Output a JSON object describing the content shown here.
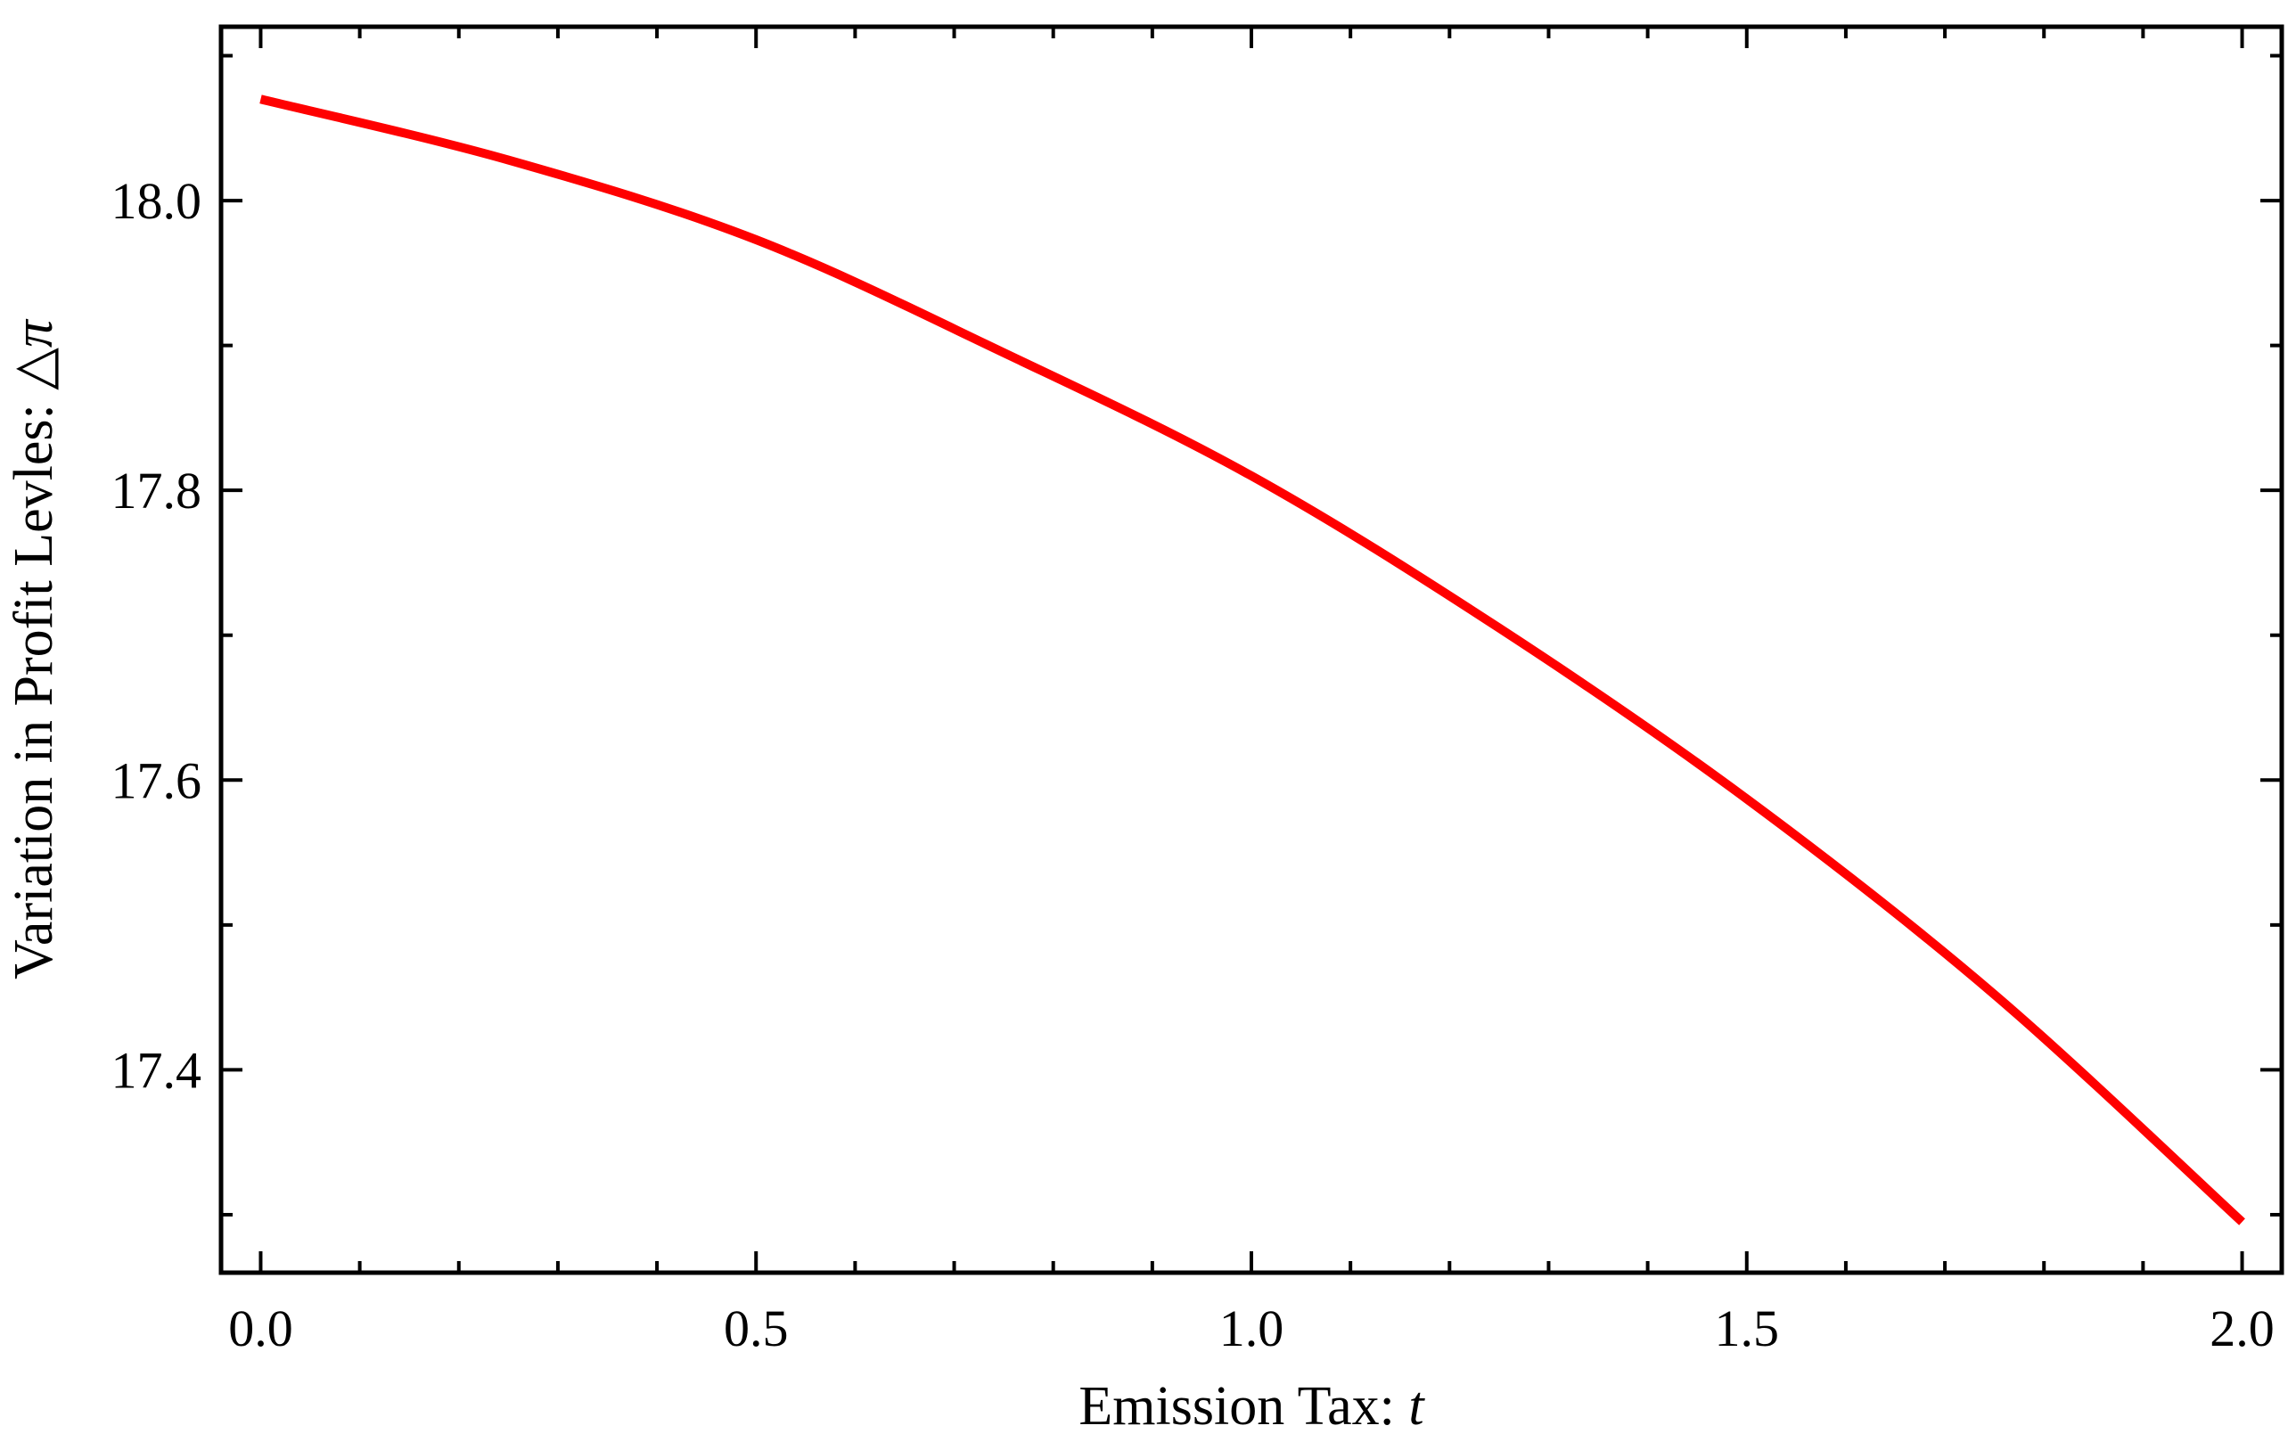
{
  "chart_data": {
    "type": "line",
    "title": "",
    "xlabel_prefix": "Emission Tax: ",
    "xlabel_symbol": "t",
    "ylabel_prefix": "Variation in Profit Levles: ",
    "ylabel_symbol": "△π",
    "xlim": [
      -0.04,
      2.04
    ],
    "ylim": [
      17.26,
      18.12
    ],
    "x_major_ticks": [
      0.0,
      0.5,
      1.0,
      1.5,
      2.0
    ],
    "x_tick_labels": [
      "0.0",
      "0.5",
      "1.0",
      "1.5",
      "2.0"
    ],
    "x_minor_step": 0.1,
    "y_major_ticks": [
      17.4,
      17.6,
      17.8,
      18.0
    ],
    "y_tick_labels": [
      "17.4",
      "17.6",
      "17.8",
      "18.0"
    ],
    "y_minor_step": 0.1,
    "grid": false,
    "series": [
      {
        "color": "#ff0000",
        "x": [
          0.0,
          0.25,
          0.5,
          0.75,
          1.0,
          1.25,
          1.5,
          1.75,
          2.0
        ],
        "y": [
          18.07,
          18.028,
          17.973,
          17.895,
          17.81,
          17.705,
          17.587,
          17.452,
          17.295
        ]
      }
    ]
  }
}
